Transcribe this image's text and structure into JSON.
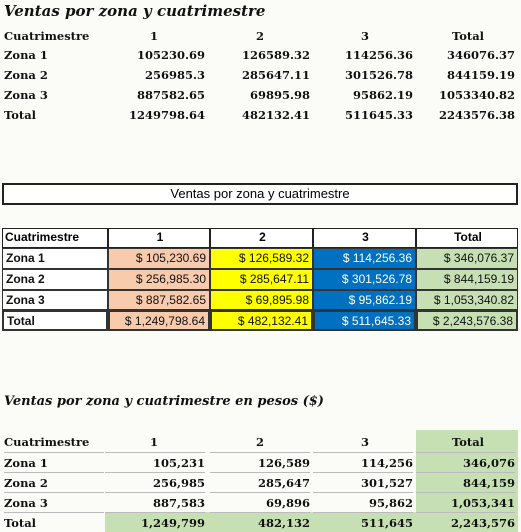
{
  "table1": {
    "title": "Ventas por zona y cuatrimestre",
    "header": [
      "Cuatrimestre",
      "1",
      "2",
      "3",
      "Total"
    ],
    "rows": [
      [
        "Zona 1",
        "105230.69",
        "126589.32",
        "114256.36",
        "346076.37"
      ],
      [
        "Zona 2",
        "256985.3",
        "285647.11",
        "301526.78",
        "844159.19"
      ],
      [
        "Zona 3",
        "887582.65",
        "69895.98",
        "95862.19",
        "1053340.82"
      ],
      [
        "Total",
        "1249798.64",
        "482132.41",
        "511645.33",
        "2243576.38"
      ]
    ]
  },
  "table2": {
    "title": "Ventas por zona y cuatrimestre",
    "header": [
      "Cuatrimestre",
      "1",
      "2",
      "3",
      "Total"
    ],
    "rows": [
      [
        "Zona 1",
        "$ 105,230.69",
        "$ 126,589.32",
        "$ 114,256.36",
        "$ 346,076.37"
      ],
      [
        "Zona 2",
        "$ 256,985.30",
        "$ 285,647.11",
        "$ 301,526.78",
        "$ 844,159.19"
      ],
      [
        "Zona 3",
        "$ 887,582.65",
        "$ 69,895.98",
        "$ 95,862.19",
        "$ 1,053,340.82"
      ],
      [
        "Total",
        "$ 1,249,798.64",
        "$ 482,132.41",
        "$ 511,645.33",
        "$ 2,243,576.38"
      ]
    ]
  },
  "table3": {
    "title": "Ventas por zona y cuatrimestre en pesos ($)",
    "header": [
      "Cuatrimestre",
      "1",
      "2",
      "3",
      "Total"
    ],
    "rows": [
      [
        "Zona 1",
        "105,231",
        "126,589",
        "114,256",
        "346,076"
      ],
      [
        "Zona 2",
        "256,985",
        "285,647",
        "301,527",
        "844,159"
      ],
      [
        "Zona 3",
        "887,583",
        "69,896",
        "95,862",
        "1,053,341"
      ],
      [
        "Total",
        "1,249,799",
        "482,132",
        "511,645",
        "2,243,576"
      ]
    ]
  }
}
